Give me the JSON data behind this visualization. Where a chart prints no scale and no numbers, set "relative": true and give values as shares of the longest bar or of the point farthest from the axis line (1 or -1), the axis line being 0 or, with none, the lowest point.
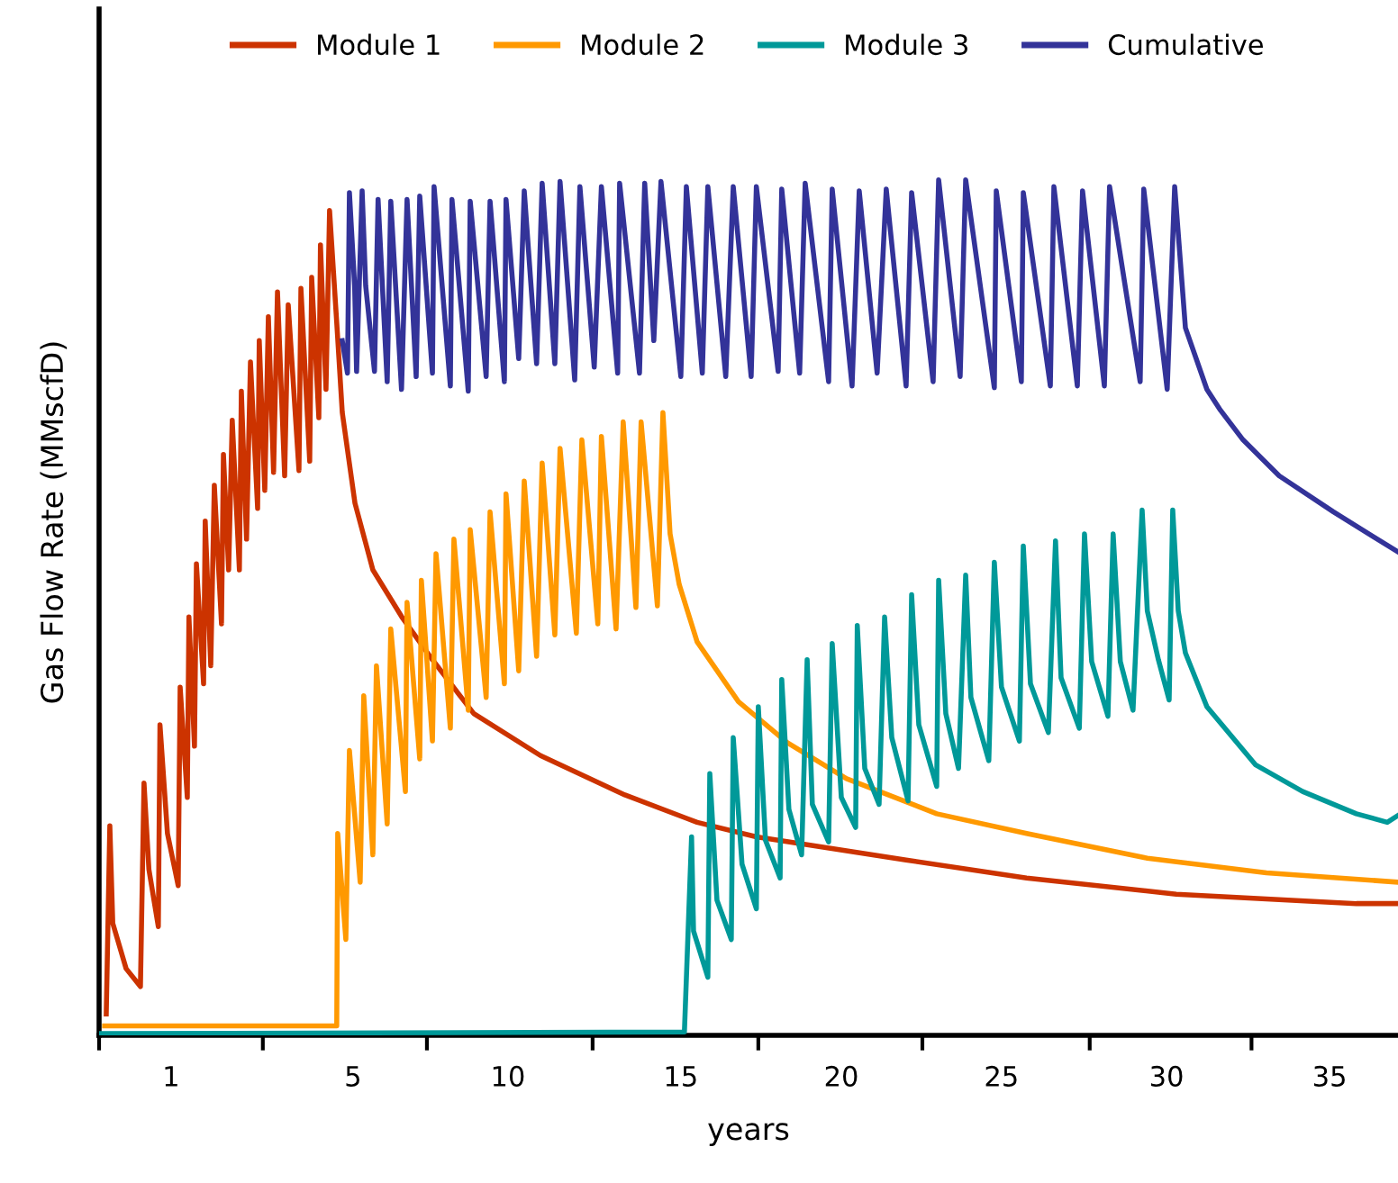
{
  "chart_data": {
    "type": "line",
    "relative": true,
    "xlabel": "years",
    "ylabel": "Gas Flow Rate (MMscfD)",
    "legend": "top",
    "grid": false,
    "line_style": "solid",
    "xlim": [
      -2.8,
      37.1
    ],
    "xticks": [
      {
        "value": -2.8,
        "label": null
      },
      {
        "value": 2.23,
        "label": null
      },
      {
        "value": 7.27,
        "label": null
      },
      {
        "value": 12.36,
        "label": null
      },
      {
        "value": 17.45,
        "label": null
      },
      {
        "value": 22.49,
        "label": null
      },
      {
        "value": 27.63,
        "label": null
      },
      {
        "value": 32.6,
        "label": null
      },
      {
        "value": -0.59,
        "label": "1"
      },
      {
        "value": 5.0,
        "label": "5"
      },
      {
        "value": 9.76,
        "label": "10"
      },
      {
        "value": 15.07,
        "label": "15"
      },
      {
        "value": 20.0,
        "label": "20"
      },
      {
        "value": 24.92,
        "label": "25"
      },
      {
        "value": 29.99,
        "label": "30"
      },
      {
        "value": 35.0,
        "label": "35"
      }
    ],
    "series": [
      {
        "name": "Module 1",
        "color": "#cc3300",
        "x": [
          -2.58,
          -2.47,
          -2.38,
          -1.97,
          -1.53,
          -1.42,
          -1.27,
          -0.98,
          -0.93,
          -0.7,
          -0.37,
          -0.31,
          -0.09,
          -0.04,
          0.13,
          0.19,
          0.41,
          0.46,
          0.63,
          0.74,
          0.96,
          1.02,
          1.18,
          1.29,
          1.51,
          1.57,
          1.73,
          1.85,
          2.07,
          2.12,
          2.29,
          2.4,
          2.56,
          2.68,
          2.9,
          3.01,
          3.34,
          3.4,
          3.67,
          3.73,
          3.95,
          4.0,
          4.17,
          4.28,
          4.5,
          4.67,
          5.06,
          5.61,
          6.5,
          7.44,
          8.71,
          10.76,
          13.35,
          15.57,
          17.39,
          21.99,
          25.69,
          30.29,
          35.82,
          37.1
        ],
        "values": [
          0.025,
          0.245,
          0.131,
          0.078,
          0.057,
          0.295,
          0.194,
          0.127,
          0.363,
          0.236,
          0.175,
          0.407,
          0.278,
          0.489,
          0.338,
          0.551,
          0.411,
          0.601,
          0.432,
          0.643,
          0.481,
          0.679,
          0.544,
          0.719,
          0.544,
          0.753,
          0.58,
          0.787,
          0.616,
          0.812,
          0.637,
          0.84,
          0.658,
          0.869,
          0.654,
          0.854,
          0.66,
          0.873,
          0.671,
          0.886,
          0.722,
          0.924,
          0.755,
          0.964,
          0.833,
          0.728,
          0.622,
          0.544,
          0.489,
          0.439,
          0.376,
          0.327,
          0.281,
          0.249,
          0.232,
          0.205,
          0.184,
          0.165,
          0.154,
          0.154
        ]
      },
      {
        "name": "Module 2",
        "color": "#ff9900",
        "x": [
          -2.63,
          4.5,
          4.53,
          4.78,
          4.89,
          5.22,
          5.33,
          5.61,
          5.72,
          6.05,
          6.16,
          6.61,
          6.66,
          7.05,
          7.1,
          7.44,
          7.55,
          7.99,
          8.1,
          8.54,
          8.6,
          9.09,
          9.21,
          9.65,
          9.7,
          10.09,
          10.26,
          10.64,
          10.81,
          11.2,
          11.36,
          11.86,
          12.03,
          12.52,
          12.63,
          13.08,
          13.3,
          13.69,
          13.85,
          14.35,
          14.52,
          14.74,
          15.02,
          15.57,
          16.84,
          18.34,
          20.16,
          22.93,
          25.69,
          29.4,
          33.06,
          37.1
        ],
        "values": [
          0.011,
          0.011,
          0.236,
          0.112,
          0.333,
          0.179,
          0.397,
          0.211,
          0.432,
          0.247,
          0.475,
          0.285,
          0.506,
          0.323,
          0.532,
          0.344,
          0.563,
          0.359,
          0.58,
          0.38,
          0.591,
          0.395,
          0.612,
          0.411,
          0.633,
          0.426,
          0.648,
          0.443,
          0.669,
          0.468,
          0.686,
          0.47,
          0.696,
          0.481,
          0.7,
          0.475,
          0.717,
          0.5,
          0.717,
          0.502,
          0.728,
          0.586,
          0.527,
          0.46,
          0.39,
          0.342,
          0.3,
          0.259,
          0.236,
          0.207,
          0.19,
          0.179
        ]
      },
      {
        "name": "Module 3",
        "color": "#009999",
        "x": [
          -2.8,
          15.18,
          15.4,
          15.46,
          15.9,
          15.96,
          16.18,
          16.62,
          16.68,
          16.95,
          17.39,
          17.45,
          17.67,
          18.12,
          18.17,
          18.39,
          18.78,
          18.95,
          19.11,
          19.61,
          19.72,
          20.0,
          20.44,
          20.49,
          20.72,
          21.16,
          21.33,
          21.55,
          22.05,
          22.16,
          22.38,
          22.93,
          22.99,
          23.21,
          23.6,
          23.82,
          23.98,
          24.53,
          24.7,
          24.92,
          25.47,
          25.59,
          25.81,
          26.36,
          26.58,
          26.75,
          27.31,
          27.47,
          27.69,
          28.19,
          28.35,
          28.57,
          28.96,
          29.24,
          29.4,
          29.74,
          30.07,
          30.18,
          30.35,
          30.57,
          31.23,
          32.73,
          34.17,
          35.82,
          36.77,
          37.1
        ],
        "values": [
          0.002,
          0.004,
          0.232,
          0.122,
          0.068,
          0.306,
          0.158,
          0.112,
          0.348,
          0.2,
          0.148,
          0.384,
          0.228,
          0.184,
          0.416,
          0.264,
          0.211,
          0.439,
          0.27,
          0.226,
          0.458,
          0.278,
          0.243,
          0.479,
          0.312,
          0.27,
          0.489,
          0.348,
          0.274,
          0.515,
          0.363,
          0.291,
          0.532,
          0.376,
          0.312,
          0.538,
          0.395,
          0.321,
          0.553,
          0.407,
          0.344,
          0.572,
          0.411,
          0.354,
          0.578,
          0.418,
          0.359,
          0.586,
          0.437,
          0.373,
          0.586,
          0.437,
          0.38,
          0.614,
          0.496,
          0.439,
          0.392,
          0.614,
          0.496,
          0.447,
          0.384,
          0.316,
          0.285,
          0.259,
          0.249,
          0.257
        ]
      },
      {
        "name": "Cumulative",
        "color": "#333399",
        "x": [
          4.67,
          4.83,
          4.89,
          5.05,
          5.11,
          5.28,
          5.39,
          5.66,
          5.77,
          6.05,
          6.16,
          6.49,
          6.66,
          6.94,
          7.05,
          7.44,
          7.49,
          7.99,
          8.04,
          8.54,
          8.6,
          9.09,
          9.21,
          9.65,
          9.7,
          10.09,
          10.26,
          10.64,
          10.81,
          11.2,
          11.36,
          11.81,
          11.97,
          12.41,
          12.63,
          13.13,
          13.19,
          13.8,
          13.96,
          14.24,
          14.46,
          15.07,
          15.24,
          15.73,
          15.9,
          16.45,
          16.68,
          17.23,
          17.39,
          18.06,
          18.17,
          18.72,
          18.89,
          19.61,
          19.72,
          20.33,
          20.55,
          21.1,
          21.38,
          21.99,
          22.16,
          22.82,
          22.99,
          23.65,
          23.82,
          24.7,
          24.76,
          25.53,
          25.59,
          26.42,
          26.53,
          27.25,
          27.41,
          28.08,
          28.24,
          29.18,
          29.29,
          30.01,
          30.24,
          30.57,
          31.23,
          31.62,
          32.34,
          33.45,
          35.11,
          37.1
        ],
        "values": [
          0.812,
          0.774,
          0.985,
          0.876,
          0.776,
          0.987,
          0.876,
          0.776,
          0.977,
          0.764,
          0.975,
          0.755,
          0.977,
          0.77,
          0.981,
          0.774,
          0.992,
          0.759,
          0.977,
          0.753,
          0.975,
          0.77,
          0.975,
          0.764,
          0.977,
          0.791,
          0.987,
          0.785,
          0.996,
          0.785,
          0.998,
          0.766,
          0.992,
          0.781,
          0.992,
          0.774,
          0.996,
          0.774,
          0.996,
          0.812,
          0.998,
          0.77,
          0.992,
          0.774,
          0.992,
          0.77,
          0.992,
          0.77,
          0.992,
          0.776,
          0.989,
          0.774,
          0.996,
          0.764,
          0.989,
          0.759,
          0.987,
          0.774,
          0.989,
          0.759,
          0.985,
          0.764,
          1.0,
          0.77,
          1.0,
          0.757,
          0.987,
          0.764,
          0.985,
          0.759,
          0.992,
          0.759,
          0.987,
          0.759,
          0.992,
          0.764,
          0.989,
          0.755,
          0.992,
          0.827,
          0.755,
          0.732,
          0.696,
          0.654,
          0.612,
          0.565
        ]
      }
    ]
  }
}
